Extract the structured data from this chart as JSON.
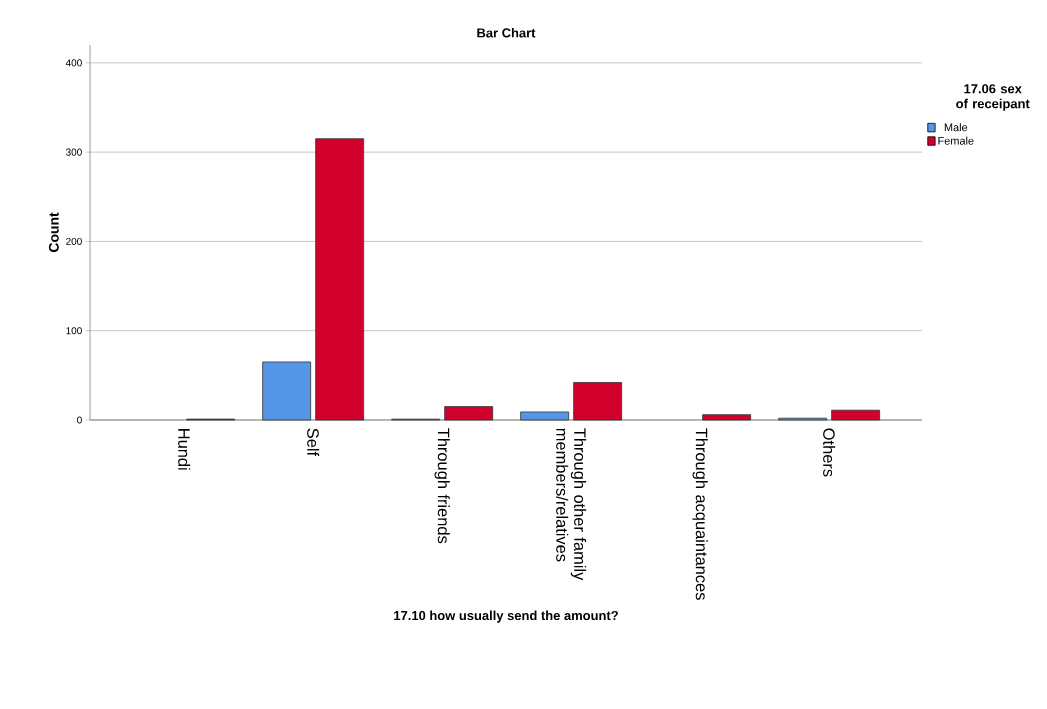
{
  "chart_data": {
    "type": "bar",
    "title": "Bar Chart",
    "xlabel": "17.10  how usually send the amount?",
    "ylabel": "Count",
    "legend_title": "17.06  sex of receipant",
    "categories": [
      "Hundi",
      "Self",
      "Through friends",
      "Through other family members/relatives",
      "Through acquaintances",
      "Others"
    ],
    "series": [
      {
        "name": "Male",
        "color": "#5596e6",
        "values": [
          null,
          65,
          1,
          9,
          null,
          2
        ]
      },
      {
        "name": "Female",
        "color": "#d2002d",
        "values": [
          1,
          315,
          15,
          42,
          6,
          11
        ]
      }
    ],
    "ylim": [
      0,
      420
    ],
    "yticks": [
      0,
      100,
      200,
      300,
      400
    ],
    "grid": "y",
    "legend": "right"
  }
}
